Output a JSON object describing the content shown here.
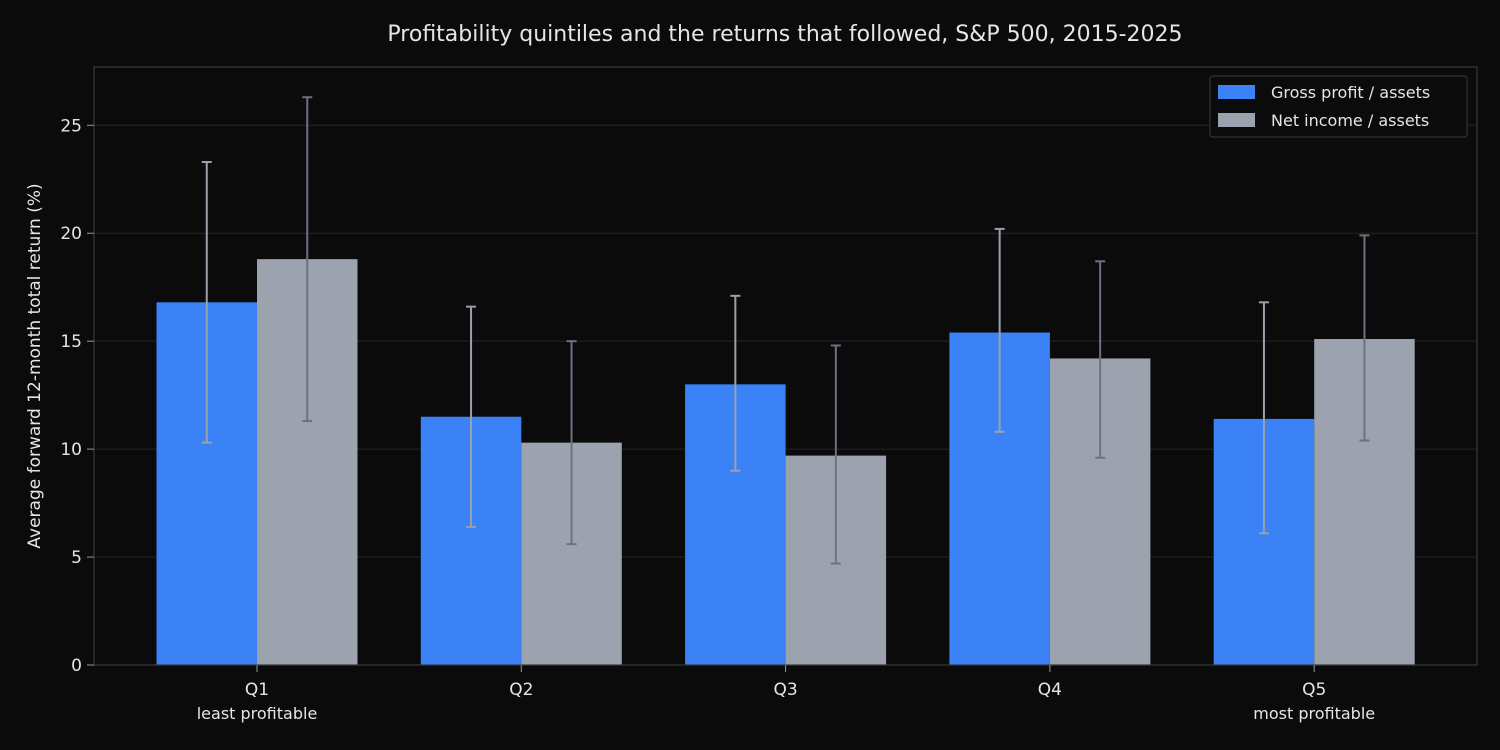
{
  "chart_data": {
    "type": "bar",
    "title": "Profitability quintiles and the returns that followed, S&P 500, 2015-2025",
    "xlabel": "",
    "ylabel": "Average forward 12-month total return (%)",
    "ylim": [
      0,
      27.7
    ],
    "yticks": [
      0,
      5,
      10,
      15,
      20,
      25
    ],
    "grid": true,
    "legend_position": "top-right",
    "categories": [
      "Q1",
      "Q2",
      "Q3",
      "Q4",
      "Q5"
    ],
    "category_sublabels": [
      "least profitable",
      "",
      "",
      "",
      "most profitable"
    ],
    "series": [
      {
        "name": "Gross profit / assets",
        "color": "#3b82f6",
        "errorbar_color": "#9aa1ad",
        "values": [
          16.8,
          11.5,
          13.0,
          15.4,
          11.4
        ],
        "error_low": [
          10.3,
          6.4,
          9.0,
          10.8,
          6.1
        ],
        "error_high": [
          23.3,
          16.6,
          17.1,
          20.2,
          16.8
        ]
      },
      {
        "name": "Net income / assets",
        "color": "#9ca3af",
        "errorbar_color": "#6b7280",
        "values": [
          18.8,
          10.3,
          9.7,
          14.2,
          15.1
        ],
        "error_low": [
          11.3,
          5.6,
          4.7,
          9.6,
          10.4
        ],
        "error_high": [
          26.3,
          15.0,
          14.8,
          18.7,
          19.9
        ]
      }
    ]
  }
}
